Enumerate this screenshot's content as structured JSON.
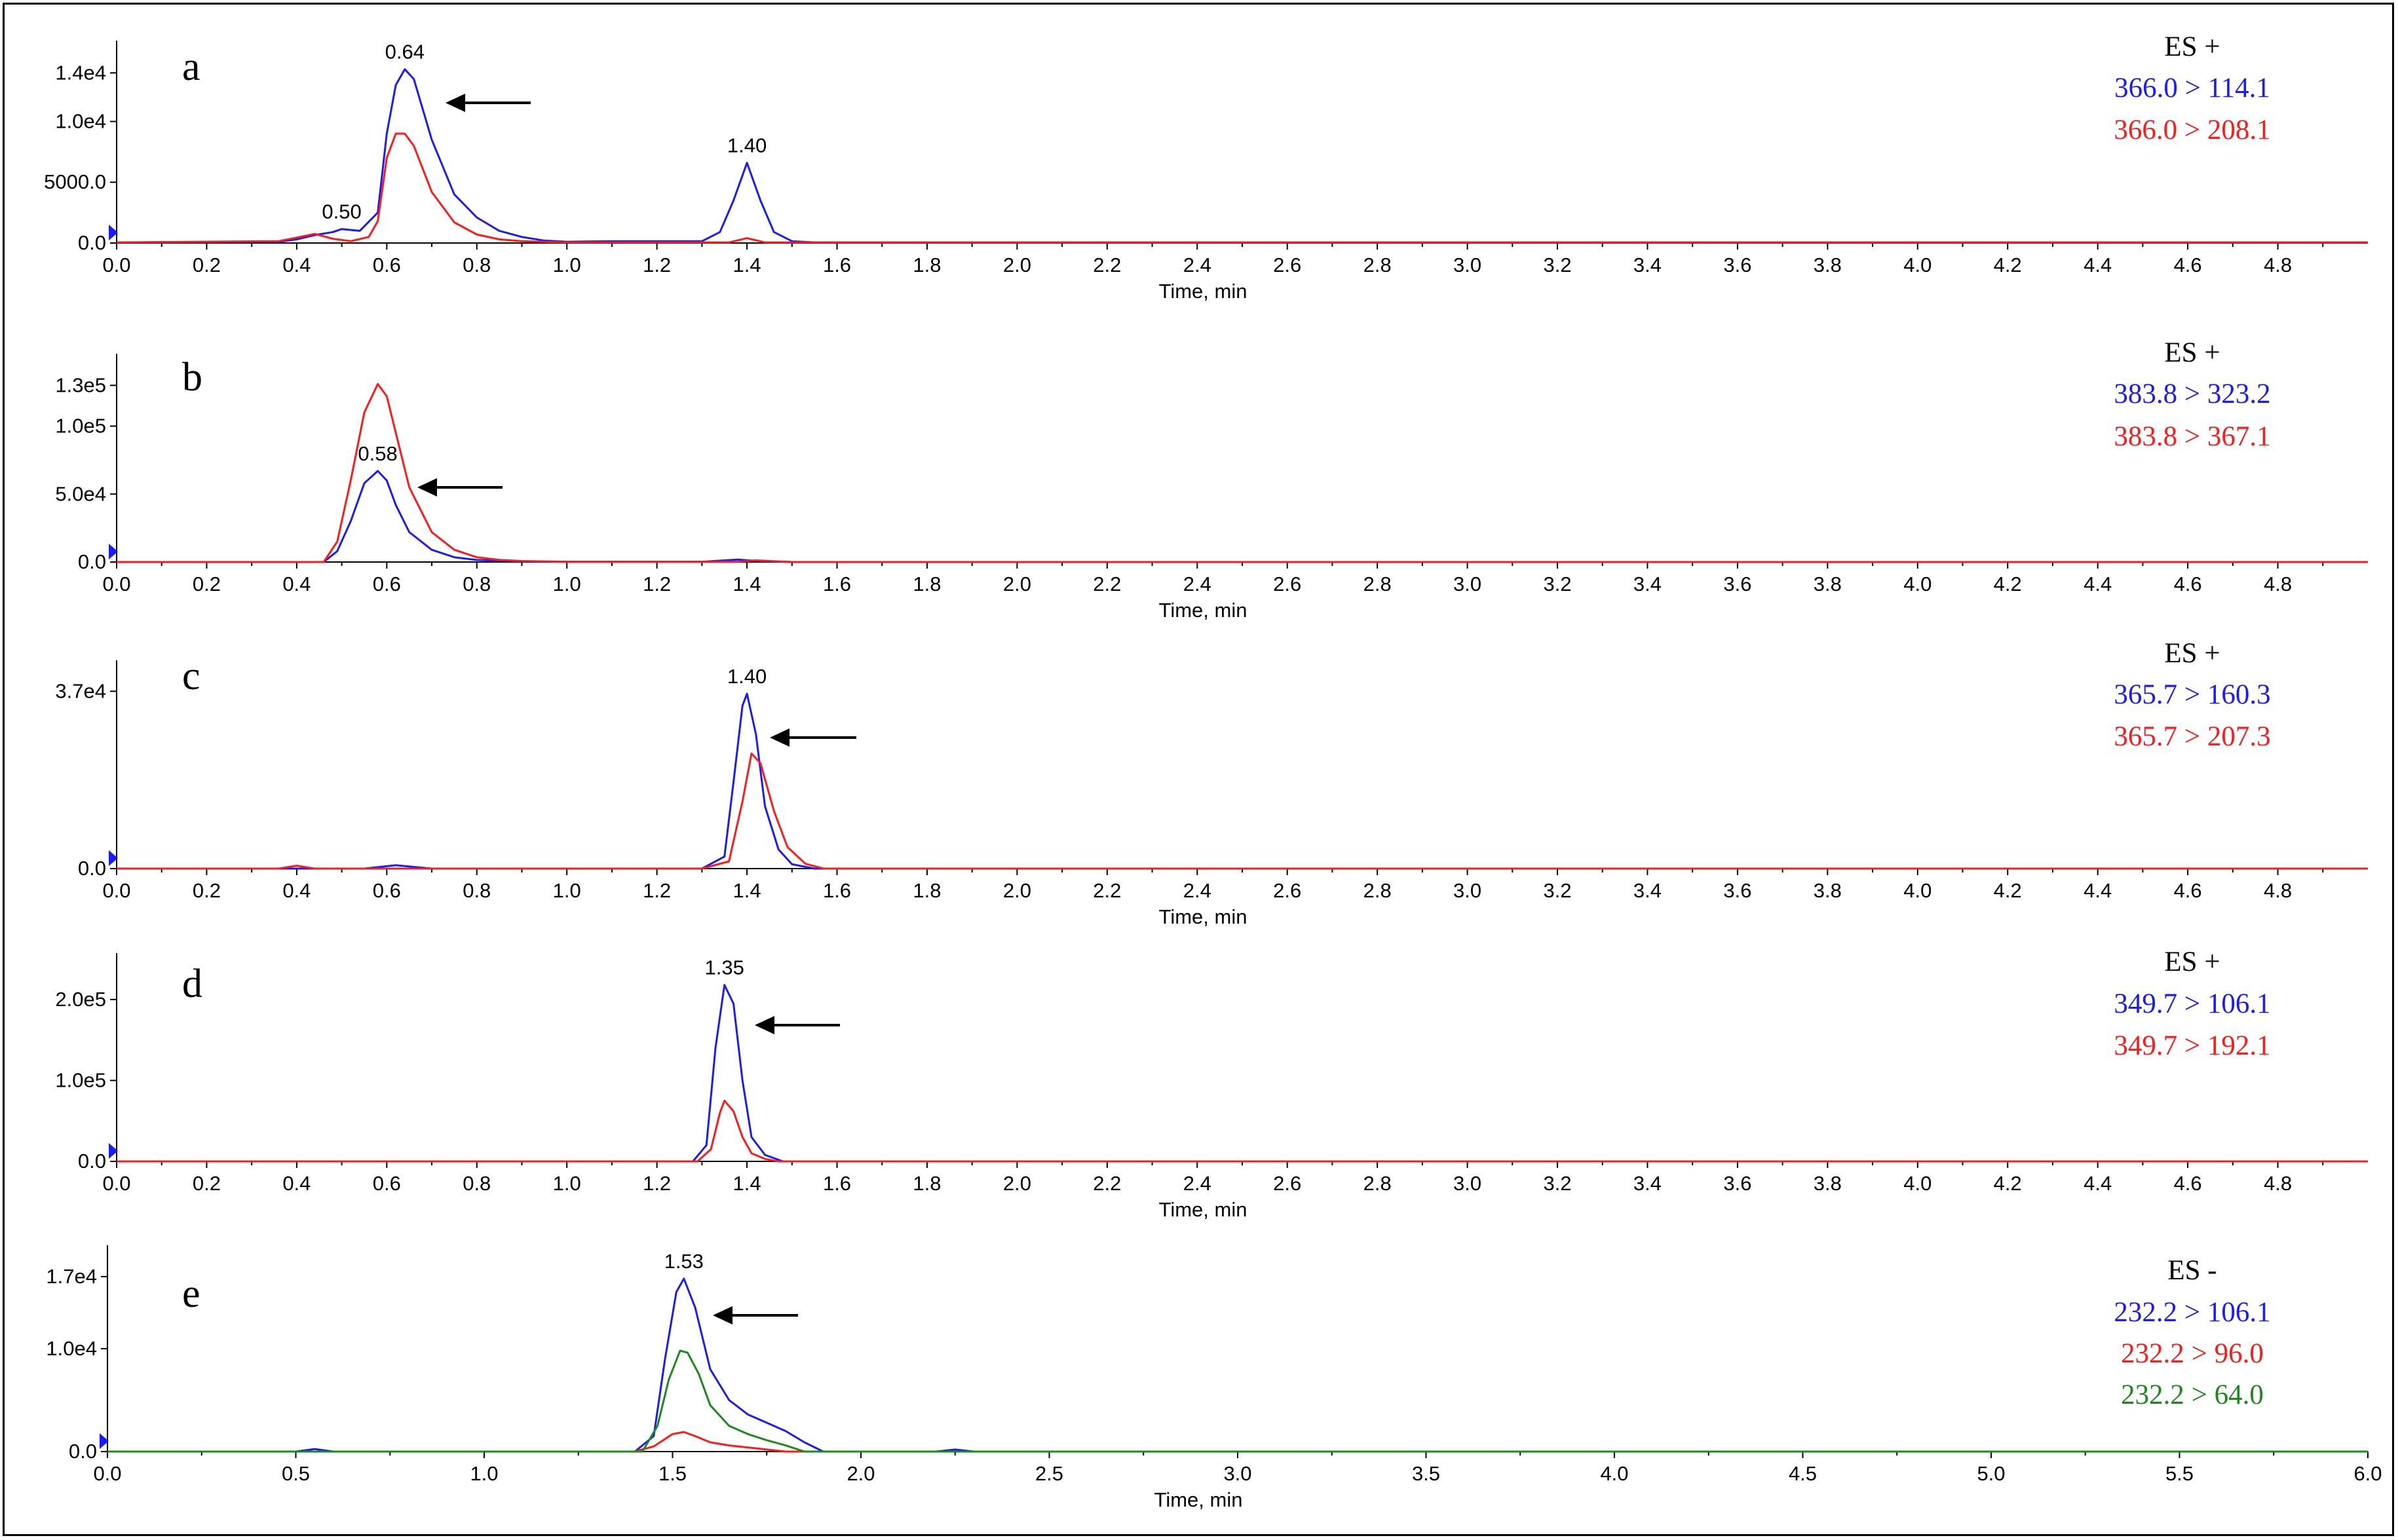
{
  "chart_data": [
    {
      "type": "line",
      "panel": "a",
      "xlabel": "Time, min",
      "xlim": [
        0,
        5.0
      ],
      "xticks": [
        "0.0",
        "0.2",
        "0.4",
        "0.6",
        "0.8",
        "1.0",
        "1.2",
        "1.4",
        "1.6",
        "1.8",
        "2.0",
        "2.2",
        "2.4",
        "2.6",
        "2.8",
        "3.0",
        "3.2",
        "3.4",
        "3.6",
        "3.8",
        "4.0",
        "4.2",
        "4.4",
        "4.6",
        "4.8"
      ],
      "ylim": [
        0,
        14500
      ],
      "yticks": [
        {
          "value": 0,
          "label": "0.0"
        },
        {
          "value": 5000,
          "label": "5000.0"
        },
        {
          "value": 10000,
          "label": "1.0e4"
        },
        {
          "value": 14000,
          "label": "1.4e4"
        }
      ],
      "mode": "ES +",
      "series": [
        {
          "name": "366.0 > 114.1",
          "color": "#1a1aff",
          "x": [
            0,
            0.36,
            0.4,
            0.44,
            0.48,
            0.5,
            0.54,
            0.58,
            0.6,
            0.62,
            0.64,
            0.66,
            0.7,
            0.75,
            0.8,
            0.85,
            0.9,
            0.95,
            1.0,
            1.1,
            1.2,
            1.3,
            1.34,
            1.37,
            1.4,
            1.43,
            1.46,
            1.5,
            1.55,
            1.6,
            5.0
          ],
          "y": [
            50,
            100,
            300,
            650,
            900,
            1150,
            1000,
            2500,
            9000,
            13000,
            14300,
            13500,
            8500,
            4000,
            2100,
            1000,
            500,
            200,
            100,
            150,
            150,
            150,
            900,
            3500,
            6600,
            3500,
            900,
            150,
            50,
            50,
            50
          ]
        },
        {
          "name": "366.0 > 208.1",
          "color": "#ff1a1a",
          "x": [
            0,
            0.36,
            0.4,
            0.44,
            0.48,
            0.52,
            0.56,
            0.58,
            0.6,
            0.62,
            0.64,
            0.66,
            0.7,
            0.75,
            0.8,
            0.85,
            0.9,
            1.0,
            1.2,
            1.36,
            1.4,
            1.44,
            1.5,
            5.0
          ],
          "y": [
            50,
            150,
            450,
            750,
            350,
            150,
            500,
            1800,
            7000,
            9000,
            9000,
            8000,
            4200,
            1700,
            700,
            300,
            150,
            50,
            50,
            50,
            400,
            50,
            50,
            50
          ]
        }
      ],
      "annotations": [
        {
          "text": "0.64",
          "x": 0.64,
          "y": 14300
        },
        {
          "text": "1.40",
          "x": 1.4,
          "y": 6600
        },
        {
          "text": "0.50",
          "x": 0.5,
          "y": 1150
        }
      ]
    },
    {
      "type": "line",
      "panel": "b",
      "xlabel": "Time, min",
      "xlim": [
        0,
        5.0
      ],
      "xticks": [
        "0.0",
        "0.2",
        "0.4",
        "0.6",
        "0.8",
        "1.0",
        "1.2",
        "1.4",
        "1.6",
        "1.8",
        "2.0",
        "2.2",
        "2.4",
        "2.6",
        "2.8",
        "3.0",
        "3.2",
        "3.4",
        "3.6",
        "3.8",
        "4.0",
        "4.2",
        "4.4",
        "4.6",
        "4.8"
      ],
      "ylim": [
        0,
        134000
      ],
      "yticks": [
        {
          "value": 0,
          "label": "0.0"
        },
        {
          "value": 50000,
          "label": "5.0e4"
        },
        {
          "value": 100000,
          "label": "1.0e5"
        },
        {
          "value": 130000,
          "label": "1.3e5"
        }
      ],
      "mode": "ES +",
      "series": [
        {
          "name": "383.8 > 323.2",
          "color": "#1a1aff",
          "x": [
            0,
            0.46,
            0.49,
            0.52,
            0.55,
            0.58,
            0.6,
            0.62,
            0.65,
            0.7,
            0.75,
            0.8,
            0.9,
            1.0,
            1.3,
            1.38,
            1.42,
            1.5,
            5.0
          ],
          "y": [
            0,
            0,
            8000,
            30000,
            58000,
            67000,
            60000,
            42000,
            22000,
            9000,
            3500,
            1500,
            500,
            200,
            200,
            1800,
            800,
            0,
            0
          ]
        },
        {
          "name": "383.8 > 367.1",
          "color": "#ff1a1a",
          "x": [
            0,
            0.46,
            0.49,
            0.52,
            0.55,
            0.58,
            0.6,
            0.62,
            0.65,
            0.7,
            0.75,
            0.8,
            0.85,
            0.9,
            1.0,
            1.38,
            1.42,
            1.5,
            5.0
          ],
          "y": [
            0,
            0,
            15000,
            60000,
            110000,
            131000,
            122000,
            95000,
            55000,
            22000,
            9000,
            3500,
            1600,
            700,
            200,
            200,
            1200,
            0,
            0
          ]
        }
      ],
      "annotations": [
        {
          "text": "0.58",
          "x": 0.58,
          "y": 67000
        }
      ]
    },
    {
      "type": "line",
      "panel": "c",
      "xlabel": "Time, min",
      "xlim": [
        0,
        5.0
      ],
      "xticks": [
        "0.0",
        "0.2",
        "0.4",
        "0.6",
        "0.8",
        "1.0",
        "1.2",
        "1.4",
        "1.6",
        "1.8",
        "2.0",
        "2.2",
        "2.4",
        "2.6",
        "2.8",
        "3.0",
        "3.2",
        "3.4",
        "3.6",
        "3.8",
        "4.0",
        "4.2",
        "4.4",
        "4.6",
        "4.8"
      ],
      "ylim": [
        0,
        38000
      ],
      "yticks": [
        {
          "value": 0,
          "label": "0.0"
        },
        {
          "value": 37000,
          "label": "3.7e4"
        }
      ],
      "mode": "ES +",
      "series": [
        {
          "name": "365.7 > 160.3",
          "color": "#1a1aff",
          "x": [
            0,
            0.55,
            0.62,
            0.7,
            1.3,
            1.35,
            1.37,
            1.39,
            1.4,
            1.42,
            1.44,
            1.47,
            1.5,
            1.55,
            5.0
          ],
          "y": [
            0,
            0,
            700,
            0,
            0,
            2500,
            18000,
            34000,
            36500,
            28000,
            13000,
            4000,
            900,
            0,
            0
          ]
        },
        {
          "name": "365.7 > 207.3",
          "color": "#ff1a1a",
          "x": [
            0,
            0.36,
            0.4,
            0.44,
            1.3,
            1.36,
            1.39,
            1.41,
            1.43,
            1.46,
            1.49,
            1.53,
            1.57,
            5.0
          ],
          "y": [
            0,
            0,
            600,
            0,
            0,
            1500,
            14000,
            24000,
            22000,
            12000,
            4500,
            1000,
            0,
            0
          ]
        }
      ],
      "annotations": [
        {
          "text": "1.40",
          "x": 1.4,
          "y": 36500
        }
      ]
    },
    {
      "type": "line",
      "panel": "d",
      "xlabel": "Time, min",
      "xlim": [
        0,
        5.0
      ],
      "xticks": [
        "0.0",
        "0.2",
        "0.4",
        "0.6",
        "0.8",
        "1.0",
        "1.2",
        "1.4",
        "1.6",
        "1.8",
        "2.0",
        "2.2",
        "2.4",
        "2.6",
        "2.8",
        "3.0",
        "3.2",
        "3.4",
        "3.6",
        "3.8",
        "4.0",
        "4.2",
        "4.4",
        "4.6",
        "4.8"
      ],
      "ylim": [
        0,
        225000
      ],
      "yticks": [
        {
          "value": 0,
          "label": "0.0"
        },
        {
          "value": 100000,
          "label": "1.0e5"
        },
        {
          "value": 200000,
          "label": "2.0e5"
        }
      ],
      "mode": "ES +",
      "series": [
        {
          "name": "349.7 > 106.1",
          "color": "#1a1aff",
          "x": [
            0,
            1.28,
            1.31,
            1.33,
            1.35,
            1.37,
            1.39,
            1.41,
            1.44,
            1.48,
            5.0
          ],
          "y": [
            0,
            0,
            20000,
            140000,
            218000,
            195000,
            100000,
            30000,
            8000,
            0,
            0
          ]
        },
        {
          "name": "349.7 > 192.1",
          "color": "#ff1a1a",
          "x": [
            0,
            1.29,
            1.32,
            1.34,
            1.35,
            1.37,
            1.39,
            1.41,
            1.44,
            1.47,
            5.0
          ],
          "y": [
            0,
            0,
            15000,
            60000,
            75000,
            62000,
            30000,
            10000,
            3000,
            0,
            0
          ]
        }
      ],
      "annotations": [
        {
          "text": "1.35",
          "x": 1.35,
          "y": 218000
        }
      ]
    },
    {
      "type": "line",
      "panel": "e",
      "xlabel": "Time, min",
      "xlim": [
        0,
        6.0
      ],
      "xticks": [
        "0.0",
        "0.5",
        "1.0",
        "1.5",
        "2.0",
        "2.5",
        "3.0",
        "3.5",
        "4.0",
        "4.5",
        "5.0",
        "5.5",
        "6.0"
      ],
      "ylim": [
        0,
        17500
      ],
      "yticks": [
        {
          "value": 0,
          "label": "0.0"
        },
        {
          "value": 10000,
          "label": "1.0e4"
        },
        {
          "value": 17000,
          "label": "1.7e4"
        }
      ],
      "mode": "ES -",
      "series": [
        {
          "name": "232.2 > 106.1",
          "color": "#1a1aff",
          "x": [
            0,
            0.5,
            0.55,
            0.6,
            1.4,
            1.45,
            1.48,
            1.51,
            1.53,
            1.56,
            1.6,
            1.65,
            1.7,
            1.75,
            1.8,
            1.85,
            1.9,
            2.2,
            2.25,
            2.3,
            6.0
          ],
          "y": [
            0,
            0,
            250,
            0,
            0,
            1500,
            9000,
            15500,
            16800,
            14000,
            8000,
            5000,
            3600,
            2800,
            2000,
            900,
            0,
            0,
            200,
            0,
            0
          ]
        },
        {
          "name": "232.2 > 96.0",
          "color": "#ff1a1a",
          "x": [
            0,
            1.4,
            1.45,
            1.5,
            1.53,
            1.56,
            1.6,
            1.65,
            1.7,
            1.75,
            1.8,
            6.0
          ],
          "y": [
            0,
            0,
            500,
            1700,
            1900,
            1500,
            900,
            600,
            400,
            200,
            0,
            0
          ]
        },
        {
          "name": "232.2 > 64.0",
          "color": "#1a8a1a",
          "x": [
            0,
            1.42,
            1.46,
            1.49,
            1.52,
            1.54,
            1.57,
            1.6,
            1.65,
            1.7,
            1.75,
            1.8,
            1.85,
            6.0
          ],
          "y": [
            0,
            0,
            2500,
            7000,
            9800,
            9600,
            7500,
            4500,
            2500,
            1700,
            1100,
            600,
            0,
            0
          ]
        }
      ],
      "annotations": [
        {
          "text": "1.53",
          "x": 1.53,
          "y": 16800
        }
      ]
    }
  ]
}
